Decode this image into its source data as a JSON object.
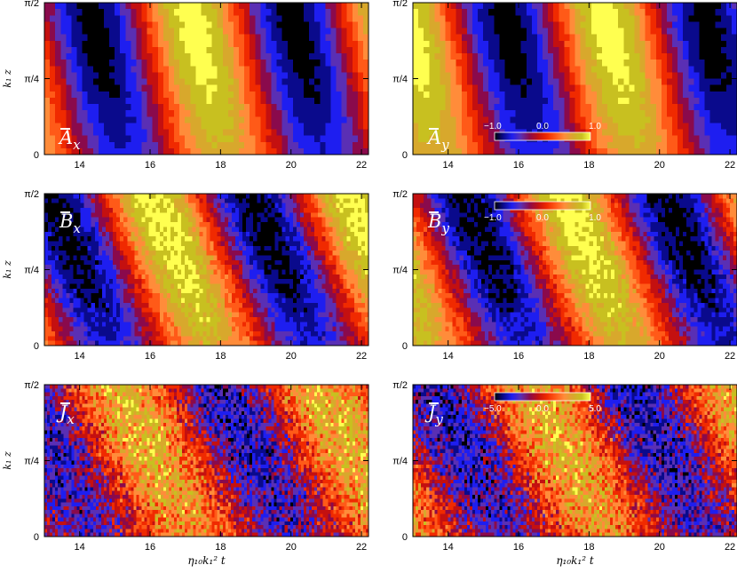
{
  "chart_data": [
    {
      "type": "heatmap",
      "label": "A",
      "sub": "x",
      "x_tick_labels": [
        "14",
        "16",
        "18",
        "20",
        "22"
      ],
      "y_tick_labels": [
        "0",
        "π/4",
        "π/2"
      ],
      "ylabel": "k₁ z",
      "xlabel": "",
      "xlim": [
        13,
        22.2
      ],
      "period": 5.7,
      "phase": 0,
      "noise": 0.05,
      "slant": 0.9,
      "colorbar": null
    },
    {
      "type": "heatmap",
      "label": "A",
      "sub": "y",
      "x_tick_labels": [
        "14",
        "16",
        "18",
        "20",
        "22"
      ],
      "y_tick_labels": [
        "0",
        "π/4",
        "π/2"
      ],
      "ylabel": "",
      "xlabel": "",
      "xlim": [
        13,
        22.2
      ],
      "period": 5.7,
      "phase": -1.4,
      "noise": 0.05,
      "slant": 0.9,
      "colorbar": {
        "min": "−1.0",
        "mid": "0.0",
        "max": "1.0"
      }
    },
    {
      "type": "heatmap",
      "label": "B",
      "sub": "x",
      "x_tick_labels": [
        "14",
        "16",
        "18",
        "20",
        "22"
      ],
      "y_tick_labels": [
        "0",
        "π/4",
        "π/2"
      ],
      "ylabel": "k₁ z",
      "xlabel": "",
      "xlim": [
        13,
        22.2
      ],
      "period": 5.7,
      "phase": 1.2,
      "noise": 0.14,
      "slant": 1.6,
      "colorbar": null
    },
    {
      "type": "heatmap",
      "label": "B",
      "sub": "y",
      "x_tick_labels": [
        "14",
        "16",
        "18",
        "20",
        "22"
      ],
      "y_tick_labels": [
        "0",
        "π/4",
        "π/2"
      ],
      "ylabel": "",
      "xlabel": "",
      "xlim": [
        13,
        22.2
      ],
      "period": 5.7,
      "phase": -0.2,
      "noise": 0.14,
      "slant": 1.6,
      "colorbar": {
        "min": "−1.0",
        "mid": "0.0",
        "max": "1.0"
      }
    },
    {
      "type": "heatmap",
      "label": "J",
      "sub": "x",
      "x_tick_labels": [
        "14",
        "16",
        "18",
        "20",
        "22"
      ],
      "y_tick_labels": [
        "0",
        "π/4",
        "π/2"
      ],
      "ylabel": "k₁ z",
      "xlabel": "η₁₀k₁² t",
      "xlim": [
        13,
        22.2
      ],
      "period": 5.7,
      "phase": 2.2,
      "noise": 0.45,
      "slant": 1.9,
      "colorbar": null
    },
    {
      "type": "heatmap",
      "label": "J",
      "sub": "y",
      "x_tick_labels": [
        "14",
        "16",
        "18",
        "20",
        "22"
      ],
      "y_tick_labels": [
        "0",
        "π/4",
        "π/2"
      ],
      "ylabel": "",
      "xlabel": "η₁₀k₁² t",
      "xlim": [
        13,
        22.2
      ],
      "period": 5.7,
      "phase": 0.8,
      "noise": 0.45,
      "slant": 1.9,
      "colorbar": {
        "min": "−5.0",
        "mid": "0.0",
        "max": "5.0"
      }
    }
  ]
}
